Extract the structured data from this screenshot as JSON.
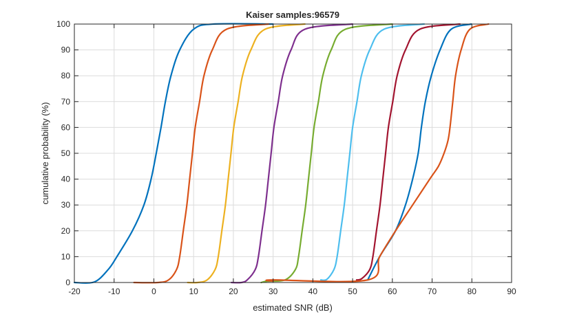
{
  "chart_data": {
    "type": "line",
    "title": "Kaiser samples:96579",
    "xlabel": "estimated SNR (dB)",
    "ylabel": "cumulative probability (%)",
    "xlim": [
      -20,
      90
    ],
    "ylim": [
      0,
      100
    ],
    "xticks": [
      -20,
      -10,
      0,
      10,
      20,
      30,
      40,
      50,
      60,
      70,
      80,
      90
    ],
    "yticks": [
      0,
      10,
      20,
      30,
      40,
      50,
      60,
      70,
      80,
      90,
      100
    ],
    "grid": true,
    "series": [
      {
        "color": "#0072BD",
        "points": [
          [
            -20,
            0
          ],
          [
            -15,
            0.2
          ],
          [
            -11.5,
            5
          ],
          [
            -9.3,
            10
          ],
          [
            -5.4,
            20
          ],
          [
            -2.5,
            30
          ],
          [
            -0.7,
            40
          ],
          [
            0.6,
            50
          ],
          [
            1.8,
            60
          ],
          [
            2.9,
            70
          ],
          [
            4.3,
            80
          ],
          [
            6.5,
            90
          ],
          [
            10,
            98
          ],
          [
            15,
            100
          ],
          [
            30,
            100
          ]
        ]
      },
      {
        "color": "#D95319",
        "points": [
          [
            -5,
            0
          ],
          [
            1,
            0
          ],
          [
            3.7,
            1
          ],
          [
            5.7,
            5
          ],
          [
            6.5,
            10
          ],
          [
            7.4,
            20
          ],
          [
            8.3,
            30
          ],
          [
            9,
            40
          ],
          [
            9.7,
            50
          ],
          [
            10.4,
            60
          ],
          [
            11.5,
            70
          ],
          [
            12.6,
            80
          ],
          [
            14.7,
            90
          ],
          [
            18.3,
            98
          ],
          [
            28.8,
            100
          ]
        ]
      },
      {
        "color": "#EDB120",
        "points": [
          [
            8.5,
            0
          ],
          [
            11,
            0
          ],
          [
            13.4,
            1
          ],
          [
            15.4,
            5
          ],
          [
            16.2,
            10
          ],
          [
            17.1,
            20
          ],
          [
            18,
            30
          ],
          [
            18.7,
            40
          ],
          [
            19.4,
            50
          ],
          [
            20.1,
            60
          ],
          [
            21.2,
            70
          ],
          [
            22.3,
            80
          ],
          [
            24.4,
            90
          ],
          [
            28,
            98
          ],
          [
            38,
            100
          ]
        ]
      },
      {
        "color": "#7E2F8E",
        "points": [
          [
            19.5,
            0
          ],
          [
            22,
            0
          ],
          [
            23.5,
            1
          ],
          [
            25.5,
            5
          ],
          [
            26.3,
            10
          ],
          [
            27.2,
            20
          ],
          [
            28.1,
            30
          ],
          [
            28.8,
            40
          ],
          [
            29.5,
            50
          ],
          [
            30.2,
            60
          ],
          [
            31.3,
            70
          ],
          [
            32.4,
            80
          ],
          [
            34.5,
            90
          ],
          [
            38,
            98
          ],
          [
            50,
            100
          ]
        ]
      },
      {
        "color": "#77AC30",
        "points": [
          [
            27,
            0
          ],
          [
            28.5,
            0.5
          ],
          [
            33,
            1
          ],
          [
            35.6,
            5
          ],
          [
            36.4,
            10
          ],
          [
            37.3,
            20
          ],
          [
            38.2,
            30
          ],
          [
            38.9,
            40
          ],
          [
            39.6,
            50
          ],
          [
            40.3,
            60
          ],
          [
            41.4,
            70
          ],
          [
            42.5,
            80
          ],
          [
            44.6,
            90
          ],
          [
            48.2,
            98
          ],
          [
            60,
            100
          ]
        ]
      },
      {
        "color": "#4DBEEE",
        "points": [
          [
            42,
            1
          ],
          [
            43.5,
            1.2
          ],
          [
            45.3,
            5
          ],
          [
            46.1,
            10
          ],
          [
            47,
            20
          ],
          [
            47.9,
            30
          ],
          [
            48.6,
            40
          ],
          [
            49.3,
            50
          ],
          [
            50,
            60
          ],
          [
            51.1,
            70
          ],
          [
            52.2,
            80
          ],
          [
            54.3,
            90
          ],
          [
            57.9,
            98
          ],
          [
            68,
            100
          ]
        ]
      },
      {
        "color": "#A2142F",
        "points": [
          [
            51,
            1
          ],
          [
            52.3,
            1.5
          ],
          [
            54.3,
            5
          ],
          [
            55.1,
            10
          ],
          [
            56,
            20
          ],
          [
            56.9,
            30
          ],
          [
            57.6,
            40
          ],
          [
            58.3,
            50
          ],
          [
            59,
            60
          ],
          [
            60.1,
            70
          ],
          [
            61.2,
            80
          ],
          [
            63.3,
            90
          ],
          [
            66.9,
            98
          ],
          [
            77,
            100
          ]
        ]
      },
      {
        "color": "#0072BD",
        "points": [
          [
            53.8,
            1
          ],
          [
            56.8,
            10
          ],
          [
            60.8,
            20
          ],
          [
            63.3,
            30
          ],
          [
            65.1,
            40
          ],
          [
            66.5,
            50
          ],
          [
            67.3,
            60
          ],
          [
            68.3,
            70
          ],
          [
            69.8,
            80
          ],
          [
            72,
            90
          ],
          [
            74.8,
            98
          ],
          [
            79.9,
            100
          ]
        ]
      },
      {
        "color": "#D95319",
        "points": [
          [
            30,
            0.5
          ],
          [
            30,
            1
          ],
          [
            53.8,
            1
          ],
          [
            56.8,
            10
          ],
          [
            60.8,
            20
          ],
          [
            65.1,
            30
          ],
          [
            69.4,
            40
          ],
          [
            71.6,
            45
          ],
          [
            73,
            50
          ],
          [
            74,
            55
          ],
          [
            74.5,
            60
          ],
          [
            75.2,
            70
          ],
          [
            75.9,
            80
          ],
          [
            77.3,
            90
          ],
          [
            79.5,
            98
          ],
          [
            84.2,
            100
          ]
        ]
      }
    ]
  }
}
